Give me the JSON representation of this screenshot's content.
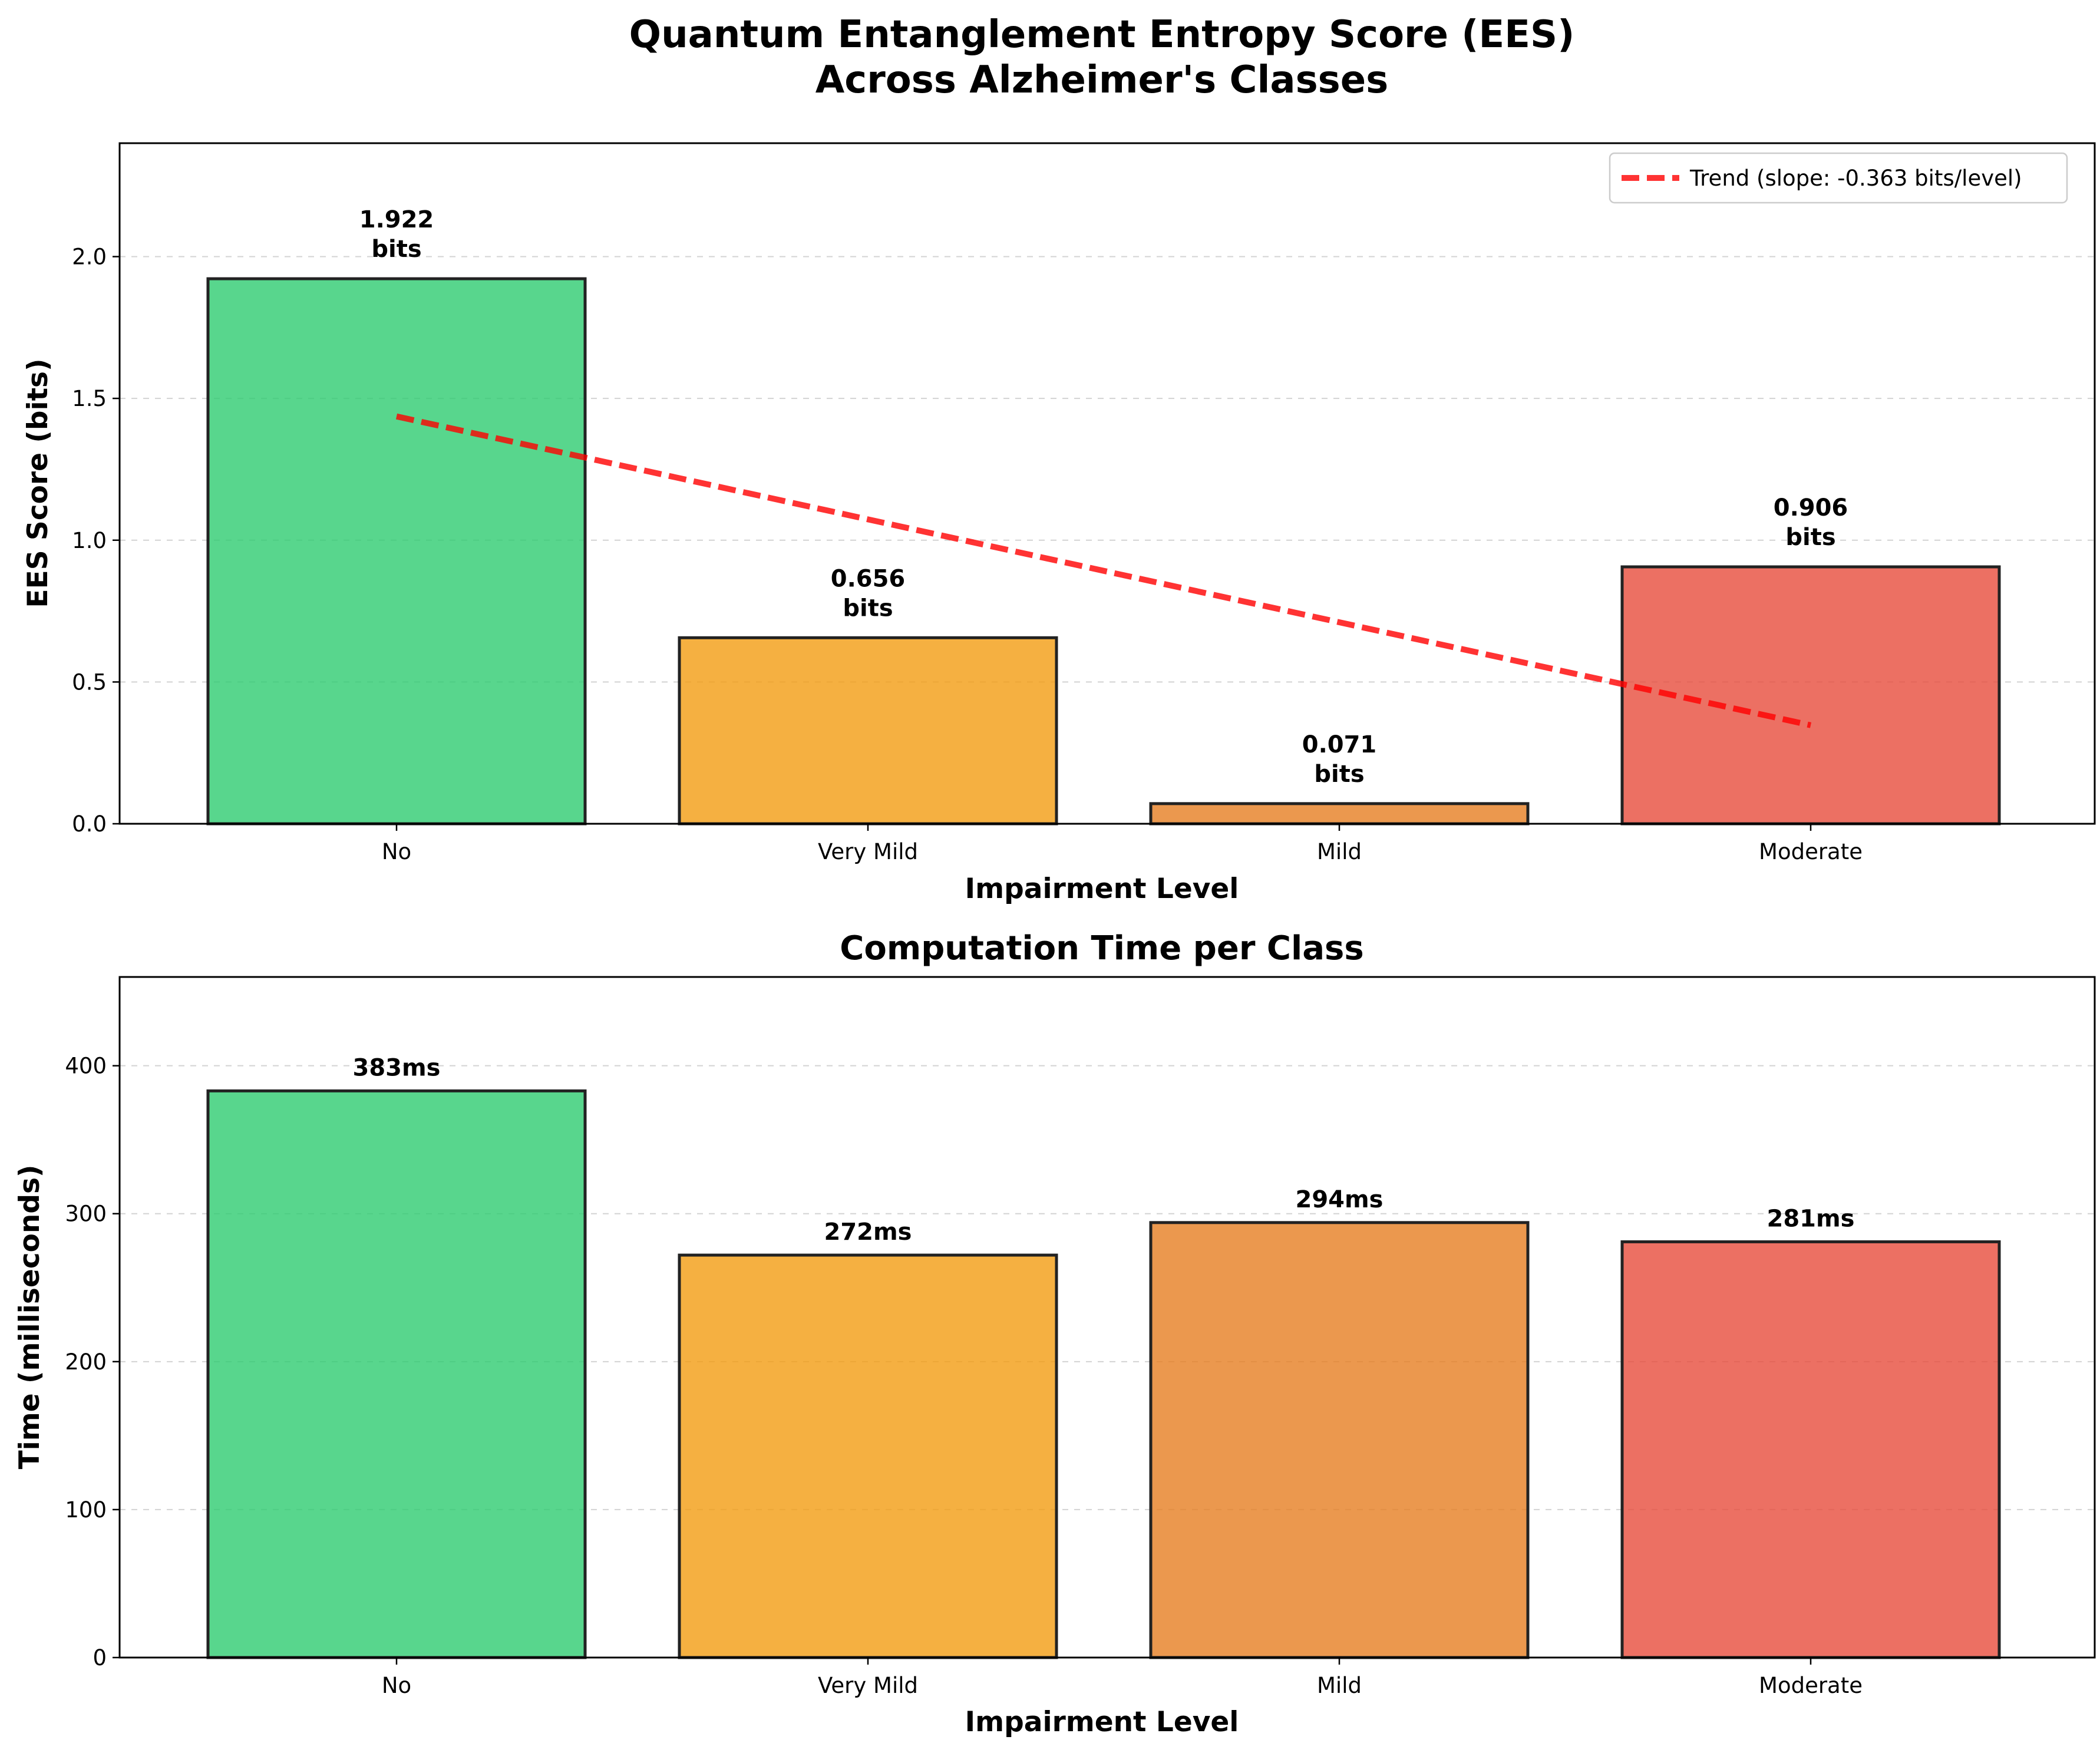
{
  "figure": {
    "suptitle_line1": "Quantum Entanglement Entropy Score (EES)",
    "suptitle_line2": "Across Alzheimer's Classes"
  },
  "chart_data": [
    {
      "type": "bar",
      "title": "",
      "xlabel": "Impairment Level",
      "ylabel": "EES Score (bits)",
      "categories": [
        "No",
        "Very Mild",
        "Mild",
        "Moderate"
      ],
      "values": [
        1.922,
        0.656,
        0.071,
        0.906
      ],
      "data_labels": [
        [
          "1.922",
          "bits"
        ],
        [
          "0.656",
          "bits"
        ],
        [
          "0.071",
          "bits"
        ],
        [
          "0.906",
          "bits"
        ]
      ],
      "colors": [
        "#2ecc71",
        "#f39c12",
        "#e67e22",
        "#e74c3c"
      ],
      "ylim": [
        0,
        2.4
      ],
      "yticks": [
        0.0,
        0.5,
        1.0,
        1.5,
        2.0
      ],
      "ytick_labels": [
        "0.0",
        "0.5",
        "1.0",
        "1.5",
        "2.0"
      ],
      "grid": true,
      "trend": {
        "label": "Trend (slope: -0.363 bits/level)",
        "start": 1.4365,
        "end": 0.3475,
        "color": "#ff0000",
        "style": "dashed"
      },
      "legend_position": "top-right"
    },
    {
      "type": "bar",
      "title": "Computation Time per Class",
      "xlabel": "Impairment Level",
      "ylabel": "Time (milliseconds)",
      "categories": [
        "No",
        "Very Mild",
        "Mild",
        "Moderate"
      ],
      "values": [
        383,
        272,
        294,
        281
      ],
      "data_labels": [
        "383ms",
        "272ms",
        "294ms",
        "281ms"
      ],
      "colors": [
        "#2ecc71",
        "#f39c12",
        "#e67e22",
        "#e74c3c"
      ],
      "ylim": [
        0,
        460
      ],
      "yticks": [
        0,
        100,
        200,
        300,
        400
      ],
      "ytick_labels": [
        "0",
        "100",
        "200",
        "300",
        "400"
      ],
      "grid": true
    }
  ]
}
